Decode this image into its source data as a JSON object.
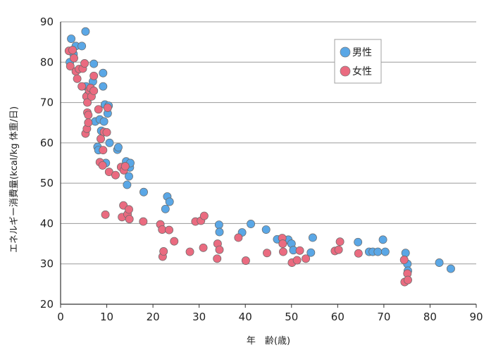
{
  "chart_data": {
    "type": "scatter",
    "title": "",
    "xlabel": "年　齢(歳)",
    "ylabel": "エネルギー消費量(kcal/kg 体重/日)",
    "xlim": [
      0,
      90
    ],
    "ylim": [
      20,
      90
    ],
    "xticks": [
      "0",
      "10",
      "20",
      "30",
      "40",
      "50",
      "60",
      "70",
      "80",
      "90"
    ],
    "yticks": [
      "20",
      "30",
      "40",
      "50",
      "60",
      "70",
      "80",
      "90"
    ],
    "grid": "horizontal",
    "legend_position": "top-right",
    "series": [
      {
        "name": "男性",
        "color": "#5aa7e6",
        "points": [
          [
            2.0,
            80.0
          ],
          [
            2.3,
            85.8
          ],
          [
            2.8,
            82.0
          ],
          [
            3.3,
            84.0
          ],
          [
            4.6,
            84.0
          ],
          [
            5.4,
            87.6
          ],
          [
            5.5,
            74.0
          ],
          [
            6.0,
            72.0
          ],
          [
            6.5,
            71.5
          ],
          [
            7.0,
            75.2
          ],
          [
            7.2,
            79.6
          ],
          [
            7.5,
            65.3
          ],
          [
            8.0,
            59.0
          ],
          [
            8.2,
            58.2
          ],
          [
            8.5,
            65.8
          ],
          [
            8.8,
            63.0
          ],
          [
            9.2,
            77.3
          ],
          [
            9.2,
            74.0
          ],
          [
            9.4,
            65.3
          ],
          [
            9.6,
            69.5
          ],
          [
            9.8,
            55.0
          ],
          [
            10.2,
            67.3
          ],
          [
            10.4,
            69.2
          ],
          [
            10.6,
            60.0
          ],
          [
            12.3,
            58.3
          ],
          [
            12.5,
            58.9
          ],
          [
            14.2,
            55.4
          ],
          [
            14.4,
            49.6
          ],
          [
            14.8,
            51.7
          ],
          [
            15.0,
            53.9
          ],
          [
            15.1,
            55.0
          ],
          [
            18.0,
            47.8
          ],
          [
            22.7,
            43.6
          ],
          [
            23.1,
            46.7
          ],
          [
            23.6,
            45.4
          ],
          [
            34.3,
            39.7
          ],
          [
            34.4,
            37.9
          ],
          [
            39.3,
            37.8
          ],
          [
            41.2,
            39.9
          ],
          [
            44.5,
            38.5
          ],
          [
            46.9,
            36.1
          ],
          [
            48.4,
            35.6
          ],
          [
            49.3,
            36.0
          ],
          [
            50.0,
            35.0
          ],
          [
            50.4,
            33.4
          ],
          [
            54.2,
            32.8
          ],
          [
            54.6,
            36.5
          ],
          [
            64.4,
            35.4
          ],
          [
            66.8,
            33.0
          ],
          [
            67.6,
            33.0
          ],
          [
            68.7,
            33.0
          ],
          [
            69.8,
            36.0
          ],
          [
            70.3,
            33.0
          ],
          [
            74.7,
            32.7
          ],
          [
            75.1,
            30.0
          ],
          [
            75.2,
            28.3
          ],
          [
            82.0,
            30.3
          ],
          [
            84.5,
            28.8
          ]
        ]
      },
      {
        "name": "女性",
        "color": "#ea6b80",
        "points": [
          [
            1.8,
            82.8
          ],
          [
            2.1,
            79.0
          ],
          [
            2.6,
            83.0
          ],
          [
            2.9,
            81.0
          ],
          [
            3.3,
            77.7
          ],
          [
            3.6,
            75.9
          ],
          [
            4.0,
            78.3
          ],
          [
            4.6,
            74.0
          ],
          [
            4.8,
            78.4
          ],
          [
            5.2,
            79.7
          ],
          [
            5.4,
            62.3
          ],
          [
            5.6,
            71.5
          ],
          [
            5.7,
            63.5
          ],
          [
            5.8,
            70.0
          ],
          [
            5.8,
            67.5
          ],
          [
            6.0,
            66.9
          ],
          [
            6.0,
            65.0
          ],
          [
            6.2,
            73.0
          ],
          [
            6.5,
            73.6
          ],
          [
            6.7,
            71.5
          ],
          [
            7.2,
            76.6
          ],
          [
            7.2,
            72.9
          ],
          [
            8.2,
            68.3
          ],
          [
            8.5,
            55.2
          ],
          [
            8.7,
            61.0
          ],
          [
            9.1,
            54.4
          ],
          [
            9.2,
            58.2
          ],
          [
            9.4,
            62.7
          ],
          [
            9.7,
            42.2
          ],
          [
            10.0,
            62.6
          ],
          [
            10.2,
            68.7
          ],
          [
            10.5,
            52.8
          ],
          [
            11.9,
            52.0
          ],
          [
            13.1,
            54.0
          ],
          [
            13.3,
            41.6
          ],
          [
            13.6,
            44.5
          ],
          [
            13.7,
            53.2
          ],
          [
            14.0,
            54.2
          ],
          [
            14.5,
            42.3
          ],
          [
            14.8,
            43.5
          ],
          [
            14.9,
            41.1
          ],
          [
            17.9,
            40.5
          ],
          [
            21.6,
            39.8
          ],
          [
            22.0,
            38.5
          ],
          [
            22.1,
            31.8
          ],
          [
            22.3,
            33.1
          ],
          [
            23.5,
            38.4
          ],
          [
            24.6,
            35.6
          ],
          [
            28.0,
            33.0
          ],
          [
            29.2,
            40.5
          ],
          [
            30.4,
            40.7
          ],
          [
            30.9,
            34.0
          ],
          [
            31.1,
            41.9
          ],
          [
            33.9,
            31.3
          ],
          [
            34.0,
            35.0
          ],
          [
            34.4,
            33.5
          ],
          [
            38.5,
            36.5
          ],
          [
            40.1,
            30.8
          ],
          [
            44.7,
            32.7
          ],
          [
            48.0,
            36.4
          ],
          [
            48.1,
            35.0
          ],
          [
            48.2,
            33.0
          ],
          [
            50.1,
            30.3
          ],
          [
            51.2,
            30.9
          ],
          [
            51.8,
            33.3
          ],
          [
            53.1,
            31.3
          ],
          [
            59.4,
            33.2
          ],
          [
            60.2,
            33.5
          ],
          [
            60.5,
            35.5
          ],
          [
            64.5,
            32.6
          ],
          [
            74.4,
            31.0
          ],
          [
            74.5,
            25.5
          ],
          [
            75.1,
            27.6
          ],
          [
            75.2,
            26.0
          ]
        ]
      }
    ]
  }
}
